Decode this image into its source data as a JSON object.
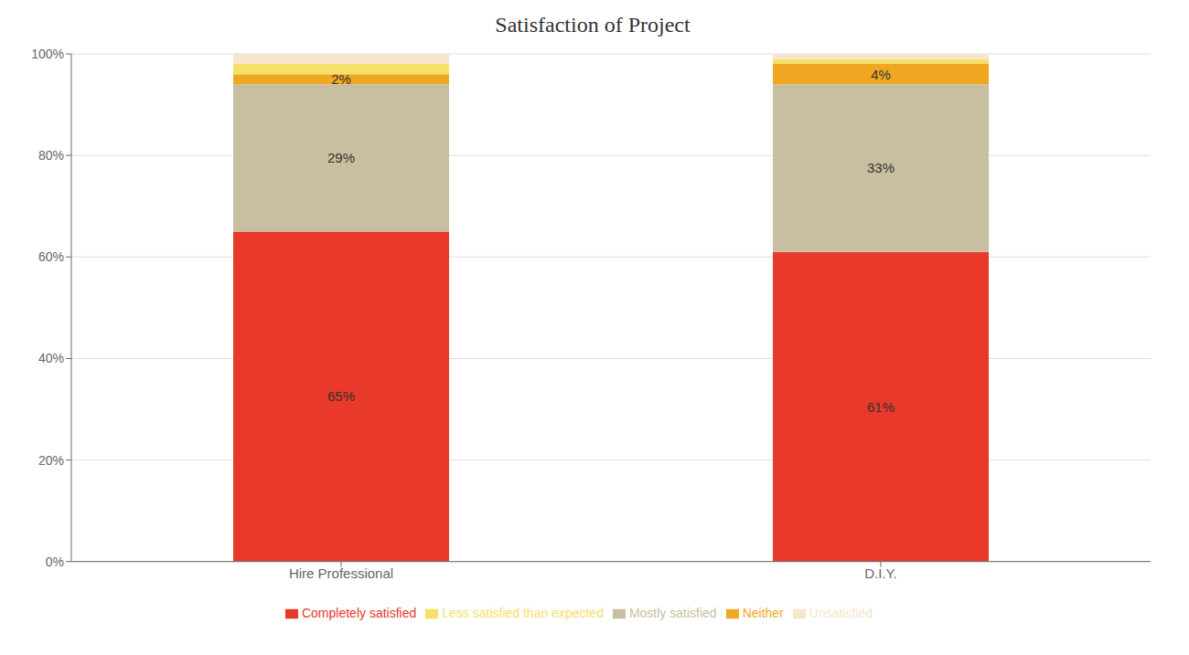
{
  "chart_data": {
    "type": "bar",
    "title": "Satisfaction of Project",
    "stacked": true,
    "grid": true,
    "legend": "bottom",
    "data_labels": true,
    "categories": [
      "Hire Professional",
      "D.I.Y."
    ],
    "series": [
      {
        "name": "Completely satisfied",
        "color": "#e8392a",
        "values": [
          65,
          61
        ],
        "value_labels": [
          "65%",
          "61%"
        ]
      },
      {
        "name": "Mostly satisfied",
        "color": "#c8bfa0",
        "values": [
          29,
          33
        ],
        "value_labels": [
          "29%",
          "33%"
        ]
      },
      {
        "name": "Neither",
        "color": "#f0a822",
        "values": [
          2,
          4
        ],
        "value_labels": [
          "2%",
          "4%"
        ]
      },
      {
        "name": "Less satisfied than expected",
        "color": "#f5e06a",
        "values": [
          2,
          1
        ]
      },
      {
        "name": "Unsatisfied",
        "color": "#f5e6cc",
        "values": [
          2,
          1
        ]
      }
    ],
    "ylim": [
      0,
      100
    ],
    "yticks": [
      {
        "value": 0,
        "label": "0%"
      },
      {
        "value": 20,
        "label": "20%"
      },
      {
        "value": 40,
        "label": "40%"
      },
      {
        "value": 60,
        "label": "60%"
      },
      {
        "value": 80,
        "label": "80%"
      },
      {
        "value": 100,
        "label": "100%"
      }
    ]
  }
}
